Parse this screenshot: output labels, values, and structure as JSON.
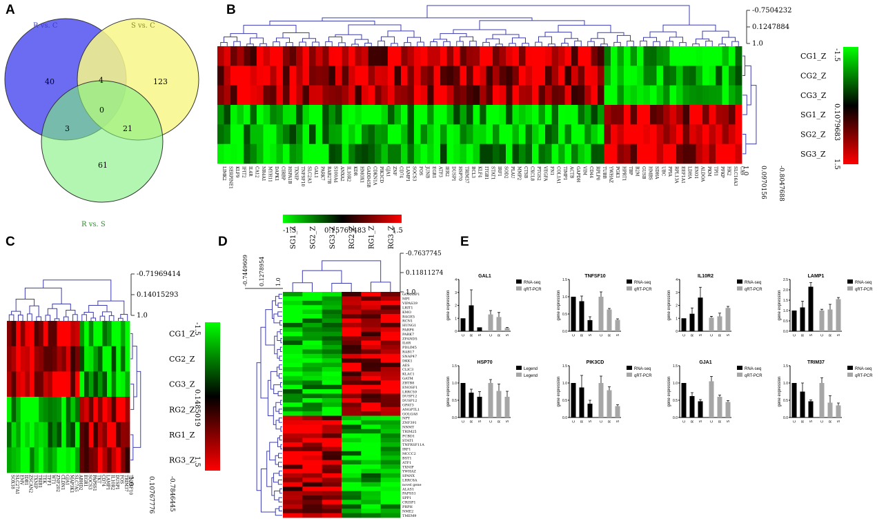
{
  "panels": {
    "a": "A",
    "b": "B",
    "c": "C",
    "d": "D",
    "e": "E"
  },
  "venn": {
    "labels": {
      "rc": "R vs. C",
      "sc": "S vs. C",
      "rs": "R vs. S"
    },
    "counts": {
      "r_only": "40",
      "s_only": "123",
      "rs_only": "61",
      "r_s": "4",
      "r_rs": "3",
      "s_rs": "21",
      "all": "0"
    },
    "colors": {
      "rc": "#6c6cf2",
      "sc": "#f7f78a",
      "rs": "#7ef07e"
    }
  },
  "heatmap_b": {
    "rows": [
      "CG1_Z",
      "CG2_Z",
      "CG3_Z",
      "SG1_Z",
      "SG2_Z",
      "SG3_Z"
    ],
    "top_scale": [
      "-0.7504232",
      "0.1247884",
      "1.0"
    ],
    "right_scale": [
      "1.0",
      "0.0970156",
      "-0.8047688"
    ],
    "color_scale": [
      "-1.5",
      "0.1079683",
      "1.5"
    ],
    "genes": [
      "LIMK2",
      "SERPINE1",
      "KLF9",
      "IFIT2",
      "IL4R",
      "CA12",
      "NR4A1",
      "MYH11",
      "DAPK1",
      "CIRBP",
      "HSPA1B",
      "TXNIP",
      "TNFSF10",
      "SLC2A3",
      "GAL1",
      "PARK7",
      "RAB27B",
      "S100A4",
      "ANXA2",
      "IL10R2",
      "KDR",
      "HMOX1",
      "GADD45B",
      "CDKN1A",
      "PIK3CD",
      "GJA1",
      "ZNF",
      "CD74",
      "LAMP1",
      "SOCS3",
      "FOS",
      "JUNB",
      "EGR1",
      "ATF3",
      "IER2",
      "DUSP1",
      "HSP70",
      "TRIM37",
      "BCL3",
      "KLF4",
      "ITGB1",
      "STAT1",
      "IRF1",
      "SOD2",
      "PLAU",
      "MMP2",
      "CTSB",
      "CXCL8",
      "PTGS2",
      "VEGFA",
      "FN1",
      "COL1A1",
      "TIMP1",
      "ACTB",
      "GAPDH",
      "VIM",
      "CD44",
      "RPLP0",
      "TUBB",
      "YWHAZ",
      "PGK1",
      "HPRT1",
      "TBP",
      "B2M",
      "GUSB",
      "HMBS",
      "SDHA",
      "UBC",
      "PPIA",
      "RPL13A",
      "EEF1A1",
      "LDHA",
      "ENO1",
      "ALDOA",
      "PKM",
      "TPI1",
      "PFKP",
      "HK2",
      "SLC16A3",
      "CA9"
    ]
  },
  "heatmap_c": {
    "rows": [
      "CG1_Z",
      "CG2_Z",
      "CG3_Z",
      "RG2_Z",
      "RG1_Z",
      "RG3_Z"
    ],
    "top_scale": [
      "-0.71969414",
      "0.14015293",
      "1.0"
    ],
    "right_scale": [
      "1.0",
      "0.10767776",
      "-0.7846445"
    ],
    "color_scale": [
      "-1.5",
      "0.1485019",
      "1.5"
    ],
    "genes": [
      "SOX18",
      "SLC27A1",
      "EMV",
      "IDB1",
      "ZSCAN2",
      "TXNIP",
      "TRIB1",
      "TEK",
      "TFF1",
      "WT1",
      "ZNF202",
      "CLDN1",
      "GJA1",
      "MAP3K1",
      "SLC7A5",
      "ABHD2",
      "EGR1",
      "SOCS3",
      "PAPSS1",
      "TKT",
      "CD74",
      "LAMP1",
      "IL10R2",
      "DUSP1",
      "FOS",
      "TRIM37",
      "TNFSF10"
    ]
  },
  "heatmap_d": {
    "cols": [
      "SG1_Z",
      "SG2_Z",
      "SG3_Z",
      "RG2_Z",
      "RG1_Z",
      "RG3_Z"
    ],
    "left_scale": [
      "-0.7449609",
      "0.1278954",
      "1.0"
    ],
    "right_scale": [
      "-0.7637745",
      "0.11811274",
      "1.0"
    ],
    "color_scale": [
      "-1.5",
      "0.15769483",
      "1.5"
    ],
    "genes": [
      "GORASP1",
      "MPI",
      "VIPAS39",
      "LRIT1",
      "KMO",
      "BAGE5",
      "RCN1",
      "HUNG1",
      "PARP8",
      "PARK7",
      "ZFAND5",
      "IL6R",
      "PDLIM5",
      "RAB17",
      "SNAP47",
      "DKK1",
      "AES",
      "CLIC3",
      "KLAC1",
      "GATM",
      "ZBTB8",
      "ENOSF1",
      "LRRC59",
      "DUSP12",
      "DUSP12",
      "GPAT3",
      "ANGPTL1",
      "GOLGA8",
      "NPY",
      "ZNF391",
      "NNMT",
      "TRIM25",
      "PCBD1",
      "STAT1",
      "TNFRSF11A",
      "IRF1",
      "MCCC2",
      "BST1",
      "ATF1",
      "TXNIP",
      "YWHAZ",
      "SPANX",
      "LRRC8A",
      "novel gene",
      "ALAS1",
      "PAPSS1",
      "SPP1",
      "CRISP1",
      "PRPH",
      "NME2",
      "TMEM9"
    ]
  },
  "bar_charts": [
    {
      "title": "GAL1",
      "legend": [
        "RNA-seq",
        "qRT-PCR"
      ],
      "yticks": [
        "0",
        "1",
        "2",
        "3",
        "4"
      ],
      "ymax": 4
    },
    {
      "title": "TNFSF10",
      "legend": [
        "RNA-seq",
        "qRT-PCR"
      ],
      "yticks": [
        "0.0",
        "0.5",
        "1.0",
        "1.5"
      ],
      "ymax": 1.5
    },
    {
      "title": "IL10R2",
      "legend": [
        "RNA-seq",
        "qRT-PCR"
      ],
      "yticks": [
        "0",
        "1",
        "2",
        "3",
        "4"
      ],
      "ymax": 4
    },
    {
      "title": "LAMP1",
      "legend": [
        "RNA-seq",
        "qRT-PCR"
      ],
      "yticks": [
        "0.0",
        "0.5",
        "1.0",
        "1.5",
        "2.0",
        "2.5"
      ],
      "ymax": 2.5
    },
    {
      "title": "HSP70",
      "legend": [
        "Legend",
        "Legend"
      ],
      "yticks": [
        "0.0",
        "0.5",
        "1.0",
        "1.5"
      ],
      "ymax": 1.5
    },
    {
      "title": "PIK3CD",
      "legend": [
        "RNA-seq",
        "qRT-PCR"
      ],
      "yticks": [
        "0.0",
        "0.5",
        "1.0",
        "1.5"
      ],
      "ymax": 1.5
    },
    {
      "title": "GJA1",
      "legend": [
        "RNA-seq",
        "qRT-PCR"
      ],
      "yticks": [
        "0.0",
        "0.5",
        "1.0",
        "1.5"
      ],
      "ymax": 1.5
    },
    {
      "title": "TRIM37",
      "legend": [
        "RNA-seq",
        "qRT-PCR"
      ],
      "yticks": [
        "0.0",
        "0.5",
        "1.0",
        "1.5"
      ],
      "ymax": 1.5
    }
  ],
  "bar_axis": {
    "ylabel": "gene expression",
    "groups": [
      "C",
      "R",
      "S",
      "C",
      "R",
      "S"
    ]
  },
  "chart_data": [
    {
      "type": "bar",
      "title": "GAL1",
      "categories": [
        "C",
        "R",
        "S"
      ],
      "series": [
        {
          "name": "RNA-seq",
          "values": [
            1.0,
            2.0,
            0.3
          ],
          "errors": [
            0,
            1.2,
            0
          ]
        },
        {
          "name": "qRT-PCR",
          "values": [
            1.3,
            1.1,
            0.25
          ],
          "errors": [
            0.3,
            0.35,
            0.05
          ]
        }
      ],
      "ylim": [
        0,
        4
      ]
    },
    {
      "type": "bar",
      "title": "TNFSF10",
      "categories": [
        "C",
        "R",
        "S"
      ],
      "series": [
        {
          "name": "RNA-seq",
          "values": [
            1.0,
            0.87,
            0.32
          ],
          "errors": [
            0,
            0.15,
            0.1
          ]
        },
        {
          "name": "qRT-PCR",
          "values": [
            1.0,
            0.63,
            0.33
          ],
          "errors": [
            0.14,
            0.03,
            0.03
          ]
        }
      ],
      "ylim": [
        0,
        1.5
      ]
    },
    {
      "type": "bar",
      "title": "IL10R2",
      "categories": [
        "C",
        "R",
        "S"
      ],
      "series": [
        {
          "name": "RNA-seq",
          "values": [
            1.0,
            1.35,
            2.6
          ],
          "errors": [
            0,
            0.45,
            0.8
          ]
        },
        {
          "name": "qRT-PCR",
          "values": [
            1.05,
            1.15,
            1.8
          ],
          "errors": [
            0.1,
            0.25,
            0.12
          ]
        }
      ],
      "ylim": [
        0,
        4
      ]
    },
    {
      "type": "bar",
      "title": "LAMP1",
      "categories": [
        "C",
        "R",
        "S"
      ],
      "series": [
        {
          "name": "RNA-seq",
          "values": [
            1.0,
            1.15,
            2.15
          ],
          "errors": [
            0,
            0.3,
            0.2
          ]
        },
        {
          "name": "qRT-PCR",
          "values": [
            1.0,
            1.05,
            1.55
          ],
          "errors": [
            0.06,
            0.25,
            0.08
          ]
        }
      ],
      "ylim": [
        0,
        2.5
      ]
    },
    {
      "type": "bar",
      "title": "HSP70",
      "categories": [
        "C",
        "R",
        "S"
      ],
      "series": [
        {
          "name": "Legend",
          "values": [
            1.0,
            0.72,
            0.6
          ],
          "errors": [
            0,
            0.1,
            0.15
          ]
        },
        {
          "name": "Legend",
          "values": [
            1.0,
            0.77,
            0.6
          ],
          "errors": [
            0.1,
            0.2,
            0.16
          ]
        }
      ],
      "ylim": [
        0,
        1.5
      ]
    },
    {
      "type": "bar",
      "title": "PIK3CD",
      "categories": [
        "C",
        "R",
        "S"
      ],
      "series": [
        {
          "name": "RNA-seq",
          "values": [
            1.0,
            0.87,
            0.4
          ],
          "errors": [
            0,
            0.35,
            0.1
          ]
        },
        {
          "name": "qRT-PCR",
          "values": [
            1.0,
            0.79,
            0.33
          ],
          "errors": [
            0.2,
            0.1,
            0.04
          ]
        }
      ],
      "ylim": [
        0,
        1.5
      ]
    },
    {
      "type": "bar",
      "title": "GJA1",
      "categories": [
        "C",
        "R",
        "S"
      ],
      "series": [
        {
          "name": "RNA-seq",
          "values": [
            1.0,
            0.62,
            0.47
          ],
          "errors": [
            0,
            0.1,
            0.05
          ]
        },
        {
          "name": "qRT-PCR",
          "values": [
            1.05,
            0.6,
            0.45
          ],
          "errors": [
            0.14,
            0.05,
            0.04
          ]
        }
      ],
      "ylim": [
        0,
        1.5
      ]
    },
    {
      "type": "bar",
      "title": "TRIM37",
      "categories": [
        "C",
        "R",
        "S"
      ],
      "series": [
        {
          "name": "RNA-seq",
          "values": [
            1.0,
            0.75,
            0.47
          ],
          "errors": [
            0,
            0.25,
            0.04
          ]
        },
        {
          "name": "qRT-PCR",
          "values": [
            1.0,
            0.43,
            0.35
          ],
          "errors": [
            0.15,
            0.2,
            0.07
          ]
        }
      ],
      "ylim": [
        0,
        1.5
      ]
    }
  ]
}
